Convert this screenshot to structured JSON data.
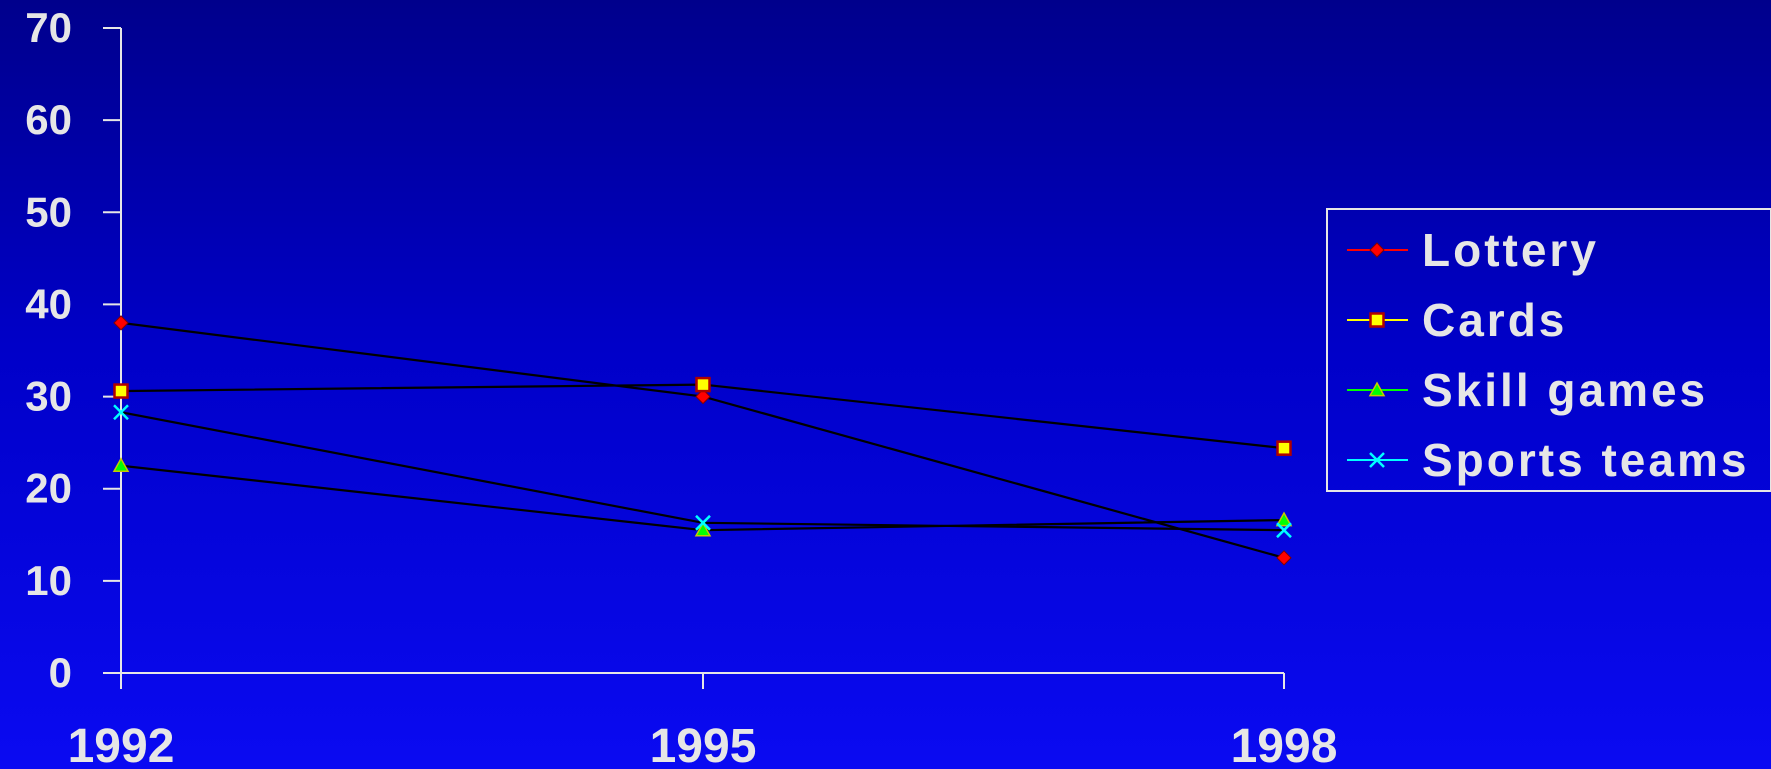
{
  "chart_data": {
    "type": "line",
    "categories": [
      "1992",
      "1995",
      "1998"
    ],
    "ylim": [
      0,
      70
    ],
    "yticks": [
      0,
      10,
      20,
      30,
      40,
      50,
      60,
      70
    ],
    "grid": false,
    "legend_position": "right",
    "line_color": "#000000",
    "series": [
      {
        "name": "Lottery",
        "values": [
          38,
          30,
          12.5
        ],
        "marker": "diamond",
        "color": "#ff0000"
      },
      {
        "name": "Cards",
        "values": [
          30.6,
          31.3,
          24.4
        ],
        "marker": "square",
        "color": "#ffff00"
      },
      {
        "name": "Skill games",
        "values": [
          22.5,
          15.5,
          16.6
        ],
        "marker": "triangle",
        "color": "#00ff00"
      },
      {
        "name": "Sports teams",
        "values": [
          28.3,
          16.3,
          15.5
        ],
        "marker": "x",
        "color": "#00ffff"
      }
    ]
  }
}
